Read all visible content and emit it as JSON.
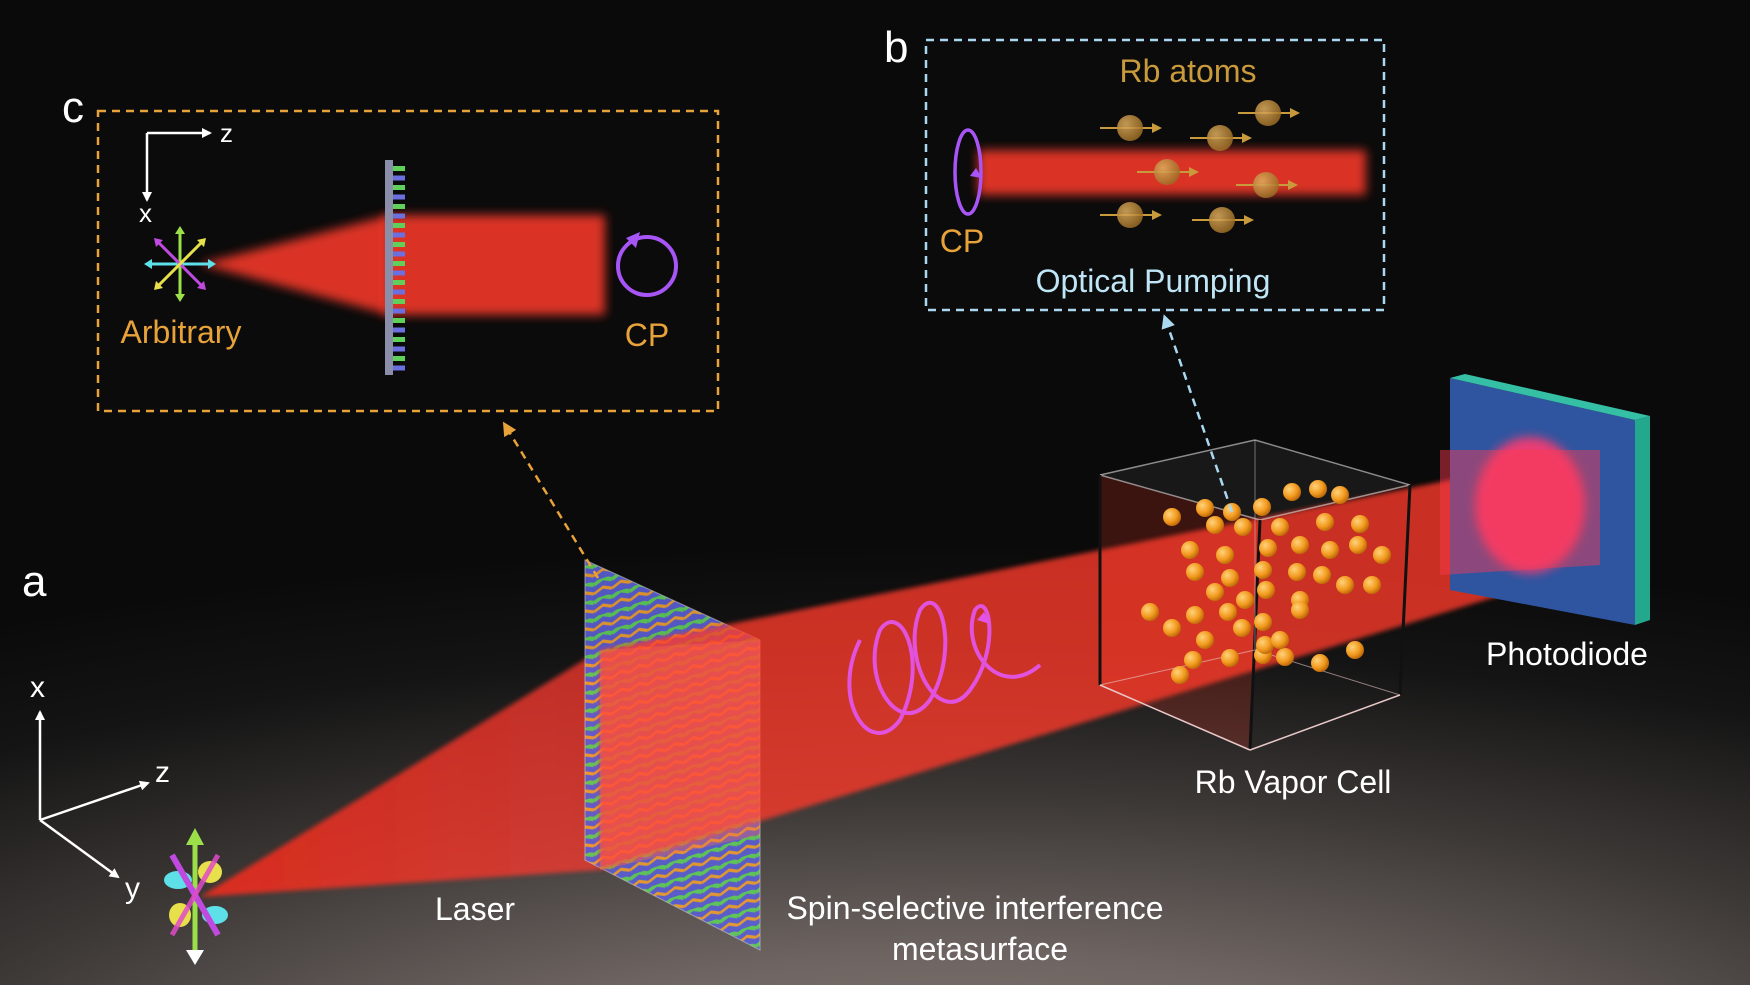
{
  "panels": {
    "a": "a",
    "b": "b",
    "c": "c"
  },
  "main": {
    "axes": {
      "x": "x",
      "y": "y",
      "z": "z"
    },
    "labels": {
      "laser": "Laser",
      "metasurface_line1": "Spin-selective interference",
      "metasurface_line2": "metasurface",
      "vapor_cell": "Rb Vapor Cell",
      "photodiode": "Photodiode"
    }
  },
  "inset_b": {
    "title": "Rb atoms",
    "cp": "CP",
    "caption": "Optical Pumping"
  },
  "inset_c": {
    "axes": {
      "z": "z",
      "x": "x"
    },
    "input_label": "Arbitrary",
    "output_label": "CP"
  },
  "colors": {
    "beam": "#ff3b30",
    "inset_c_border": "#e8a23a",
    "inset_b_border": "#a9d8f0",
    "label_orange": "#e8a23a",
    "label_gold": "#c99a3c",
    "label_lightblue": "#bfe6f7",
    "cp_purple": "#a855f7",
    "atom": "#f29a1e",
    "helix": "#e254e8",
    "photodiode_face": "#2f55a0",
    "photodiode_edge": "#23a88e"
  }
}
